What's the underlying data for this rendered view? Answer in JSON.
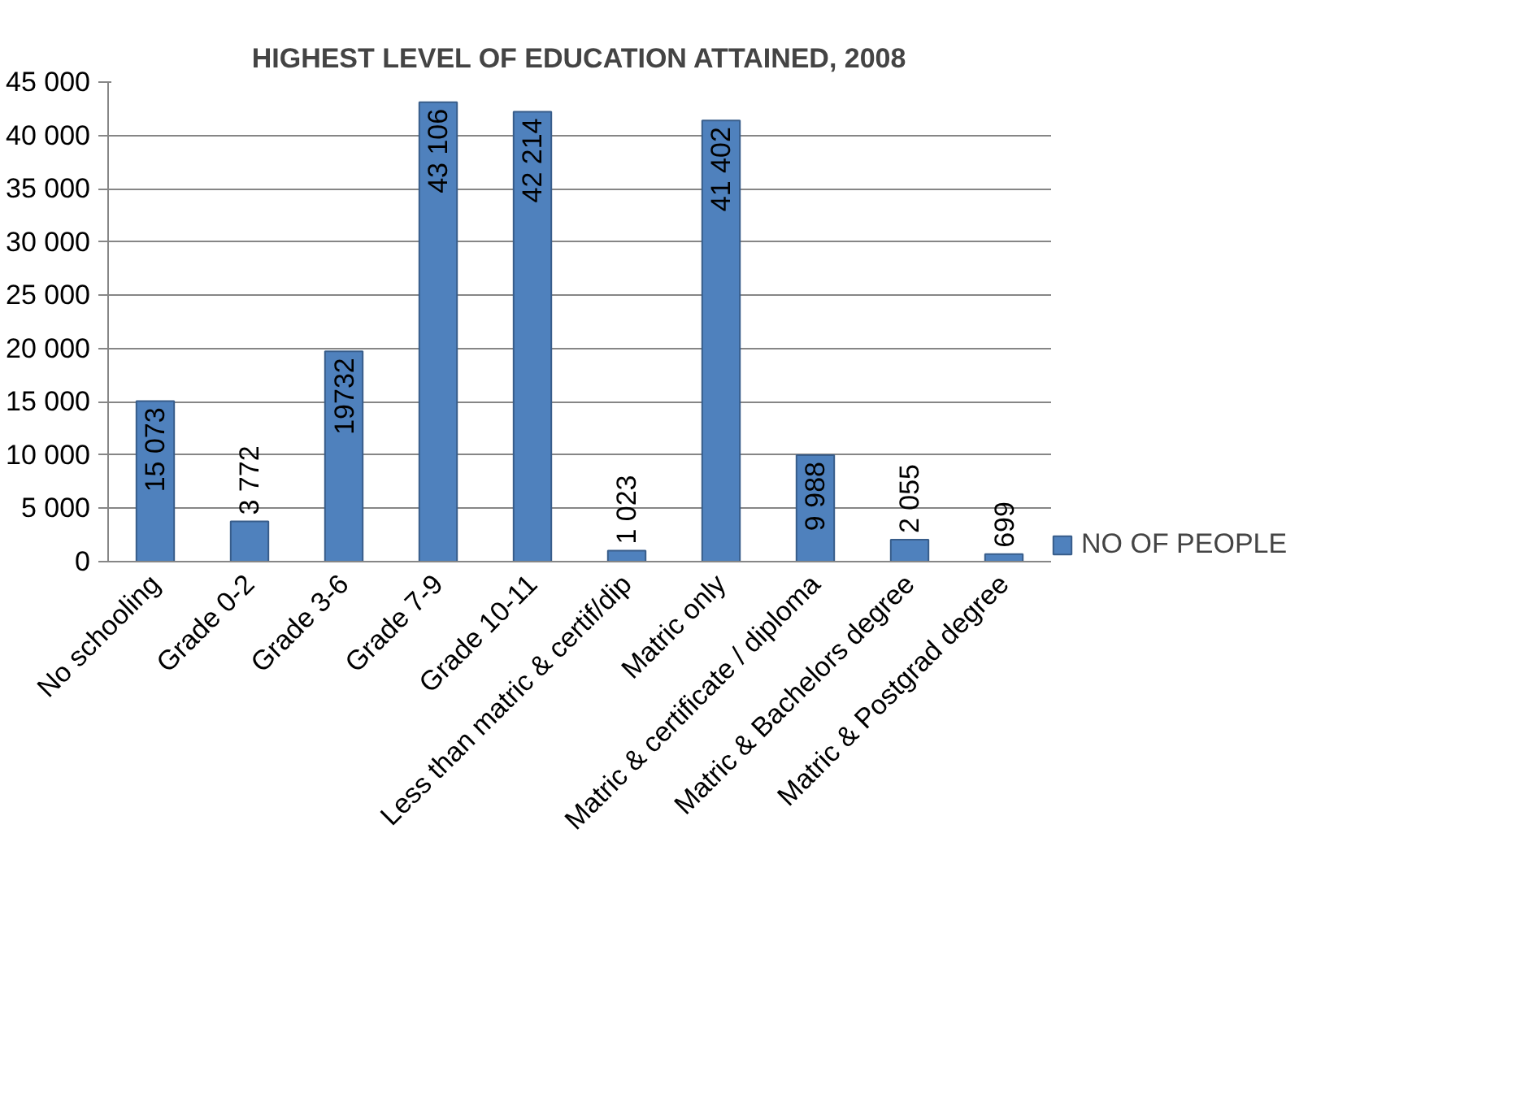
{
  "chart_data": {
    "type": "bar",
    "title": "HIGHEST LEVEL OF EDUCATION ATTAINED, 2008",
    "categories": [
      "No schooling",
      "Grade 0-2",
      "Grade 3-6",
      "Grade 7-9",
      "Grade 10-11",
      "Less than matric & certif/dip",
      "Matric only",
      "Matric & certificate / diploma",
      "Matric & Bachelors degree",
      "Matric & Postgrad degree"
    ],
    "series": [
      {
        "name": "NO OF PEOPLE",
        "color": "#4f81bd",
        "values": [
          15073,
          3772,
          19732,
          43106,
          42214,
          1023,
          41402,
          9988,
          2055,
          699
        ],
        "value_labels": [
          "15 073",
          "3 772",
          "19732",
          "43 106",
          "42 214",
          "1 023",
          "41 402",
          "9 988",
          "2 055",
          "699"
        ]
      }
    ],
    "ylim": [
      0,
      45000
    ],
    "yticks": [
      0,
      {
        "value": 5000,
        "label": "5 000"
      },
      {
        "value": 10000,
        "label": "10 000"
      },
      {
        "value": 15000,
        "label": "15 000"
      },
      {
        "value": 20000,
        "label": "20 000"
      },
      {
        "value": 25000,
        "label": "25 000"
      },
      {
        "value": 30000,
        "label": "30 000"
      },
      {
        "value": 35000,
        "label": "35 000"
      },
      {
        "value": 40000,
        "label": "40 000"
      },
      {
        "value": 45000,
        "label": "45 000"
      }
    ],
    "grid": "y",
    "legend": "right"
  }
}
